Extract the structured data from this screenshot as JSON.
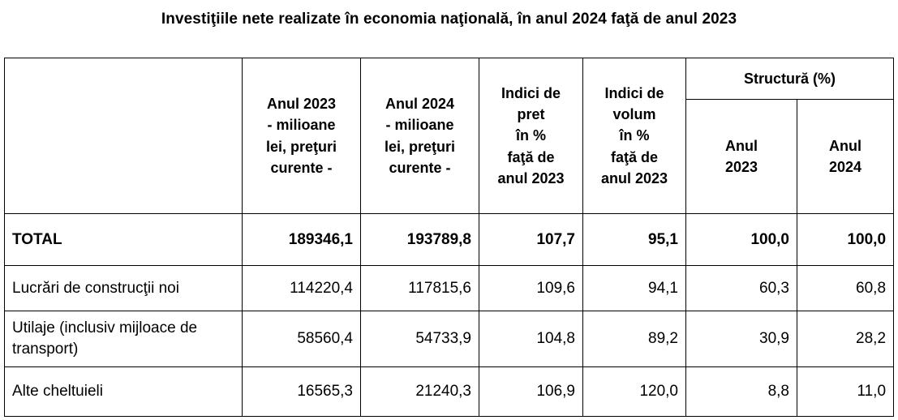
{
  "title": "Investiţiile nete realizate în economia naţională, în anul 2024 faţă de anul 2023",
  "table": {
    "headers": {
      "row_label": "",
      "year2023_mil": "Anul 2023\n- milioane\nlei, preţuri\ncurente -",
      "year2024_mil": "Anul 2024\n- milioane\nlei, preţuri\ncurente -",
      "price_index": "Indici de\npret\nîn %\nfaţă de\nanul 2023",
      "volume_index": "Indici de\nvolum\nîn %\nfaţă de\nanul 2023",
      "structure_group": "Structură (%)",
      "structure_2023": "Anul\n2023",
      "structure_2024": "Anul\n2024"
    },
    "rows": [
      {
        "label": "TOTAL",
        "values": [
          "189346,1",
          "193789,8",
          "107,7",
          "95,1",
          "100,0",
          "100,0"
        ]
      },
      {
        "label": "Lucrări de construcţii noi",
        "values": [
          "114220,4",
          "117815,6",
          "109,6",
          "94,1",
          "60,3",
          "60,8"
        ]
      },
      {
        "label": "Utilaje (inclusiv mijloace de transport)",
        "values": [
          "58560,4",
          "54733,9",
          "104,8",
          "89,2",
          "30,9",
          "28,2"
        ]
      },
      {
        "label": "Alte cheltuieli",
        "values": [
          "16565,3",
          "21240,3",
          "106,9",
          "120,0",
          "8,8",
          "11,0"
        ]
      }
    ],
    "colors": {
      "border": "#000000",
      "text": "#000000",
      "background": "#ffffff"
    }
  }
}
